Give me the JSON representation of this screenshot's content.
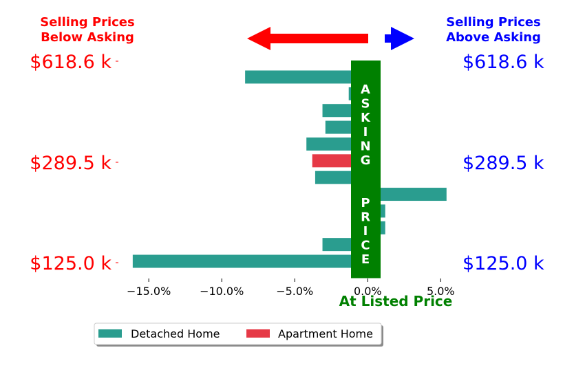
{
  "chart_data": {
    "type": "bar",
    "orientation": "horizontal",
    "title_left": [
      "Selling Prices",
      "Below Asking"
    ],
    "title_right": [
      "Selling Prices",
      "Above Asking"
    ],
    "xlabel": "At Listed Price",
    "center_band_label": "ASKING  PRICE",
    "x_ticks": [
      "−15.0%",
      "−10.0%",
      "−5.0%",
      "0.0%",
      "5.0%"
    ],
    "x_tick_values": [
      -15,
      -10,
      -5,
      0,
      5
    ],
    "xlim": [
      -16.8,
      6.4
    ],
    "price_labels_left": [
      "$618.6 k",
      "$289.5 k",
      "$125.0 k"
    ],
    "price_labels_right": [
      "$618.6 k",
      "$289.5 k",
      "$125.0 k"
    ],
    "legend_placement": "bottom-center",
    "series": [
      {
        "name": "Detached Home",
        "color": "#2a9d8f"
      },
      {
        "name": "Apartment Home",
        "color": "#e63946"
      }
    ],
    "bars": [
      {
        "value": -8.4,
        "series": 0
      },
      {
        "value": -1.3,
        "series": 0
      },
      {
        "value": -3.1,
        "series": 0
      },
      {
        "value": -2.9,
        "series": 0
      },
      {
        "value": -4.2,
        "series": 0
      },
      {
        "value": -3.8,
        "series": 1
      },
      {
        "value": -3.6,
        "series": 0
      },
      {
        "value": 5.4,
        "series": 0
      },
      {
        "value": 1.2,
        "series": 0
      },
      {
        "value": 1.2,
        "series": 0
      },
      {
        "value": -3.1,
        "series": 0
      },
      {
        "value": -16.1,
        "series": 0
      }
    ],
    "colors": {
      "left_labels": "#ff0000",
      "right_labels": "#0000ff",
      "asking_band": "#008000",
      "arrow_left": "#ff0000",
      "arrow_right": "#0000ff"
    }
  }
}
